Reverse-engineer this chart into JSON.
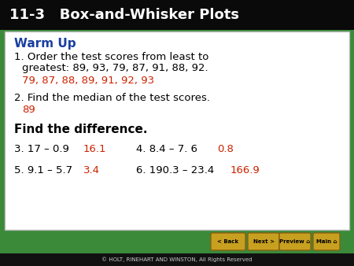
{
  "title": "11-3   Box-and-Whisker Plots",
  "header_bg": "#0a0a0a",
  "content_bg": "#ffffff",
  "outer_bg": "#3a8a3a",
  "warm_up_label": "Warm Up",
  "warm_up_color": "#1a3fa0",
  "q1_text_line1": "1. Order the test scores from least to",
  "q1_text_line2": "    greatest: 89, 93, 79, 87, 91, 88, 92.",
  "q1_answer": "79, 87, 88, 89, 91, 92, 93",
  "answer_color": "#cc2200",
  "q2_text": "2. Find the median of the test scores.",
  "q2_answer": "89",
  "find_diff_label": "Find the difference.",
  "q3_text": "3. 17 – 0.9",
  "q3_answer": "16.1",
  "q4_text": "4. 8.4 – 7. 6",
  "q4_answer": "0.8",
  "q5_text": "5. 9.1 – 5.7",
  "q5_answer": "3.4",
  "q6_text": "6. 190.3 – 23.4",
  "q6_answer": "166.9",
  "footer_text": "© HOLT, RINEHART AND WINSTON, All Rights Reserved",
  "nav_bg": "#c8a020",
  "nav_border": "#8a6010",
  "nav_buttons": [
    "< Back",
    "Next >",
    "Preview",
    "Main"
  ],
  "black_text": "#000000",
  "footer_bar_bg": "#111111",
  "footer_text_color": "#cccccc"
}
